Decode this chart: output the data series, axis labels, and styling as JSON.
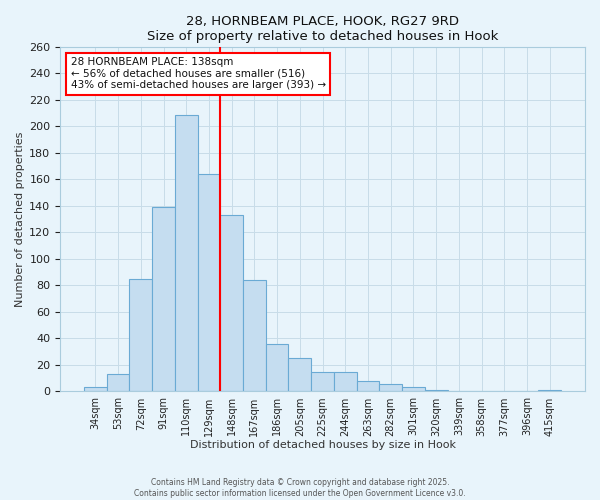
{
  "title": "28, HORNBEAM PLACE, HOOK, RG27 9RD",
  "subtitle": "Size of property relative to detached houses in Hook",
  "xlabel": "Distribution of detached houses by size in Hook",
  "ylabel": "Number of detached properties",
  "bar_labels": [
    "34sqm",
    "53sqm",
    "72sqm",
    "91sqm",
    "110sqm",
    "129sqm",
    "148sqm",
    "167sqm",
    "186sqm",
    "205sqm",
    "225sqm",
    "244sqm",
    "263sqm",
    "282sqm",
    "301sqm",
    "320sqm",
    "339sqm",
    "358sqm",
    "377sqm",
    "396sqm",
    "415sqm"
  ],
  "bar_values": [
    3,
    13,
    85,
    139,
    209,
    164,
    133,
    84,
    36,
    25,
    15,
    15,
    8,
    6,
    3,
    1,
    0,
    0,
    0,
    0,
    1
  ],
  "bar_color": "#c5ddf0",
  "bar_edge_color": "#6aaad4",
  "vline_x": 6,
  "vline_color": "red",
  "vline_linewidth": 1.5,
  "ylim": [
    0,
    260
  ],
  "yticks": [
    0,
    20,
    40,
    60,
    80,
    100,
    120,
    140,
    160,
    180,
    200,
    220,
    240,
    260
  ],
  "annotation_title": "28 HORNBEAM PLACE: 138sqm",
  "annotation_line1": "← 56% of detached houses are smaller (516)",
  "annotation_line2": "43% of semi-detached houses are larger (393) →",
  "footer_line1": "Contains HM Land Registry data © Crown copyright and database right 2025.",
  "footer_line2": "Contains public sector information licensed under the Open Government Licence v3.0.",
  "bg_color": "#e8f4fb",
  "plot_bg_color": "#e8f4fb",
  "grid_color": "#c8dce8"
}
